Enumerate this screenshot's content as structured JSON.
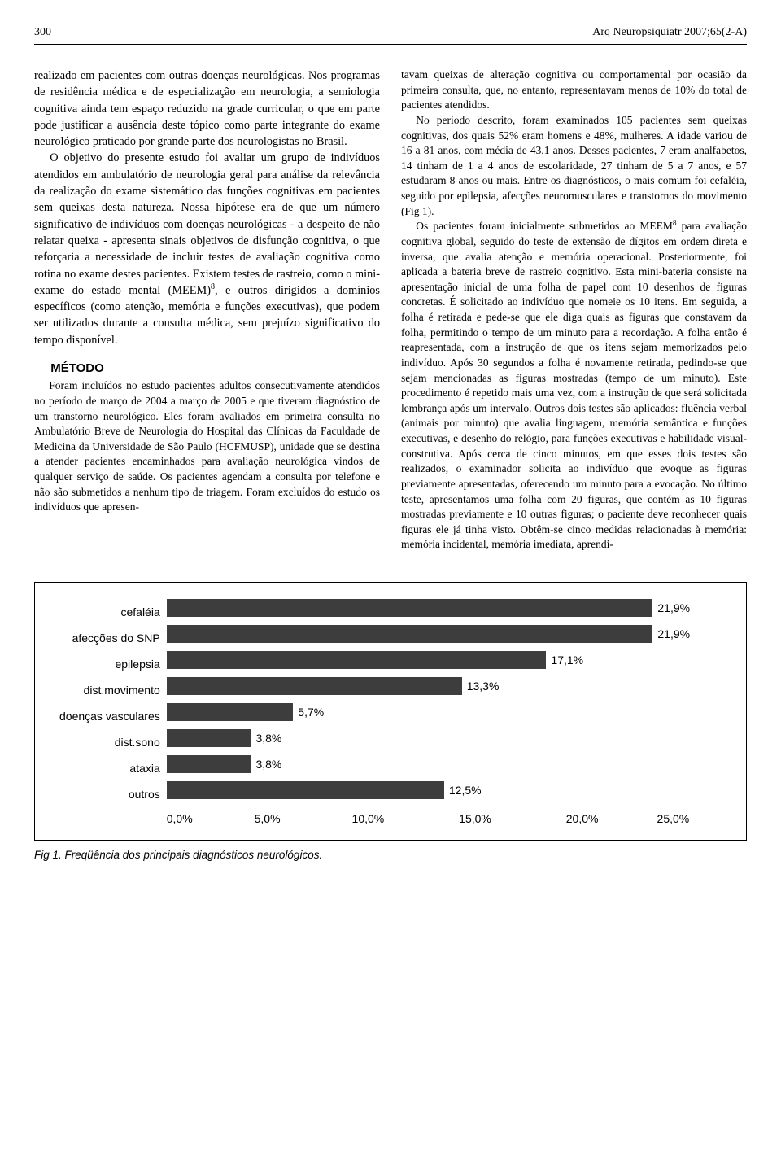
{
  "running_head": {
    "page_num": "300",
    "journal": "Arq Neuropsiquiatr 2007;65(2-A)"
  },
  "left": {
    "p1": "realizado em pacientes com outras doenças neurológicas. Nos programas de residência médica e de especialização em neurologia, a semiologia cognitiva ainda tem espaço reduzido na grade curricular, o que em parte pode justificar a ausência deste tópico como parte integrante do exame neurológico praticado por grande parte dos neurologistas no Brasil.",
    "p2a": "O objetivo do presente estudo foi avaliar um grupo de indivíduos atendidos em ambulatório de neurologia geral para análise da relevância da realização do exame sistemático das funções cognitivas em pacientes sem queixas desta natureza. Nossa hipótese era de que um número significativo de indivíduos com doenças neurológicas - a despeito de não relatar queixa - apresenta sinais objetivos de disfunção cognitiva, o que reforçaria a necessidade de incluir testes de avaliação cognitiva como rotina no exame destes pacientes. Existem testes de rastreio, como o mini-exame do estado mental (MEEM)",
    "p2b": ", e outros dirigidos a domínios específicos (como atenção, memória e funções executivas), que podem ser utilizados durante a consulta médica, sem prejuízo significativo do tempo disponível.",
    "method_heading": "MÉTODO",
    "method_body": "Foram incluídos no estudo pacientes adultos consecutivamente atendidos no período de março de 2004 a março de 2005 e que tiveram diagnóstico de um transtorno neurológico. Eles foram avaliados em primeira consulta no Ambulatório Breve de Neurologia do Hospital das Clínicas da Faculdade de Medicina da Universidade de São Paulo (HCFMUSP), unidade que se destina a atender pacientes encaminhados para avaliação neurológica vindos de qualquer serviço de saúde. Os pacientes agendam a consulta por telefone e não são submetidos a nenhum tipo de triagem. Foram excluídos do estudo os indivíduos que apresen-"
  },
  "right": {
    "p1": "tavam queixas de alteração cognitiva ou comportamental por ocasião da primeira consulta, que, no entanto, representavam menos de 10% do total de pacientes atendidos.",
    "p2": "No período descrito, foram examinados 105 pacientes sem queixas cognitivas, dos quais 52% eram homens e 48%, mulheres. A idade variou de 16 a 81 anos, com média de 43,1 anos. Desses pacientes, 7 eram analfabetos, 14 tinham de 1 a 4 anos de escolaridade, 27 tinham de 5 a 7 anos, e 57 estudaram 8 anos ou mais. Entre os diagnósticos, o mais comum foi cefaléia, seguido por epilepsia, afecções neuromusculares e transtornos do movimento (Fig 1).",
    "p3a": "Os pacientes foram inicialmente submetidos ao MEEM",
    "p3b": " para avaliação cognitiva global, seguido do teste de extensão de dígitos em ordem direta e inversa, que avalia atenção e memória operacional. Posteriormente, foi aplicada a bateria breve de rastreio cognitivo. Esta mini-bateria consiste na apresentação inicial de uma folha de papel com 10 desenhos de figuras concretas. É solicitado ao indivíduo que nomeie os 10 itens. Em seguida, a folha é retirada e pede-se que ele diga quais as figuras que constavam da folha, permitindo o tempo de um minuto para a recordação. A folha então é reapresentada, com a instrução de que os itens sejam memorizados pelo indivíduo. Após 30 segundos a folha é novamente retirada, pedindo-se que sejam mencionadas as figuras mostradas (tempo de um minuto). Este procedimento é repetido mais uma vez, com a instrução de que será solicitada lembrança após um intervalo. Outros dois testes são aplicados: fluência verbal (animais por minuto) que avalia linguagem, memória semântica e funções executivas, e desenho do relógio, para funções executivas e habilidade visual-construtiva. Após cerca de cinco minutos, em que esses dois testes são realizados, o examinador solicita ao indivíduo que evoque as figuras previamente apresentadas, oferecendo um minuto para a evocação. No último teste, apresentamos uma folha com 20 figuras, que contém as 10 figuras mostradas previamente e 10 outras figuras; o paciente deve reconhecer quais figuras ele já tinha visto. Obtêm-se cinco medidas relacionadas à memória: memória incidental, memória imediata, aprendi-"
  },
  "chart": {
    "type": "bar-horizontal",
    "xlim": [
      0,
      25
    ],
    "xtick_labels": [
      "0,0%",
      "5,0%",
      "10,0%",
      "15,0%",
      "20,0%",
      "25,0%"
    ],
    "bar_color": "#3d3d3d",
    "background_color": "#ffffff",
    "label_fontsize": 14,
    "categories": [
      "cefaléia",
      "afecções do SNP",
      "epilepsia",
      "dist.movimento",
      "doenças vasculares",
      "dist.sono",
      "ataxia",
      "outros"
    ],
    "value_labels": [
      "21,9%",
      "21,9%",
      "17,1%",
      "13,3%",
      "5,7%",
      "3,8%",
      "3,8%",
      "12,5%"
    ],
    "values": [
      21.9,
      21.9,
      17.1,
      13.3,
      5.7,
      3.8,
      3.8,
      12.5
    ]
  },
  "fig_caption": "Fig 1. Freqüência dos principais diagnósticos neurológicos."
}
